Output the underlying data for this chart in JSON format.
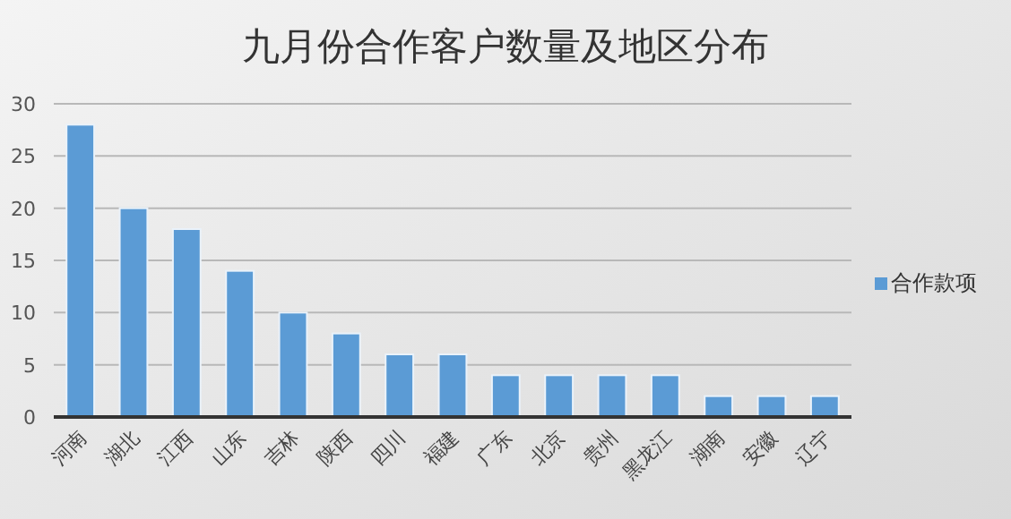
{
  "chart_data": {
    "type": "bar",
    "title": "九月份合作客户数量及地区分布",
    "categories": [
      "河南",
      "湖北",
      "江西",
      "山东",
      "吉林",
      "陕西",
      "四川",
      "福建",
      "广东",
      "北京",
      "贵州",
      "黑龙江",
      "湖南",
      "安徽",
      "辽宁"
    ],
    "series": [
      {
        "name": "合作款项",
        "color": "#5b9bd5",
        "values": [
          28,
          20,
          18,
          14,
          10,
          8,
          6,
          6,
          4,
          4,
          4,
          4,
          2,
          2,
          2
        ]
      }
    ],
    "ylim": [
      0,
      30
    ],
    "yticks": [
      0,
      5,
      10,
      15,
      20,
      25,
      30
    ],
    "grid": "y",
    "legend": "right"
  }
}
